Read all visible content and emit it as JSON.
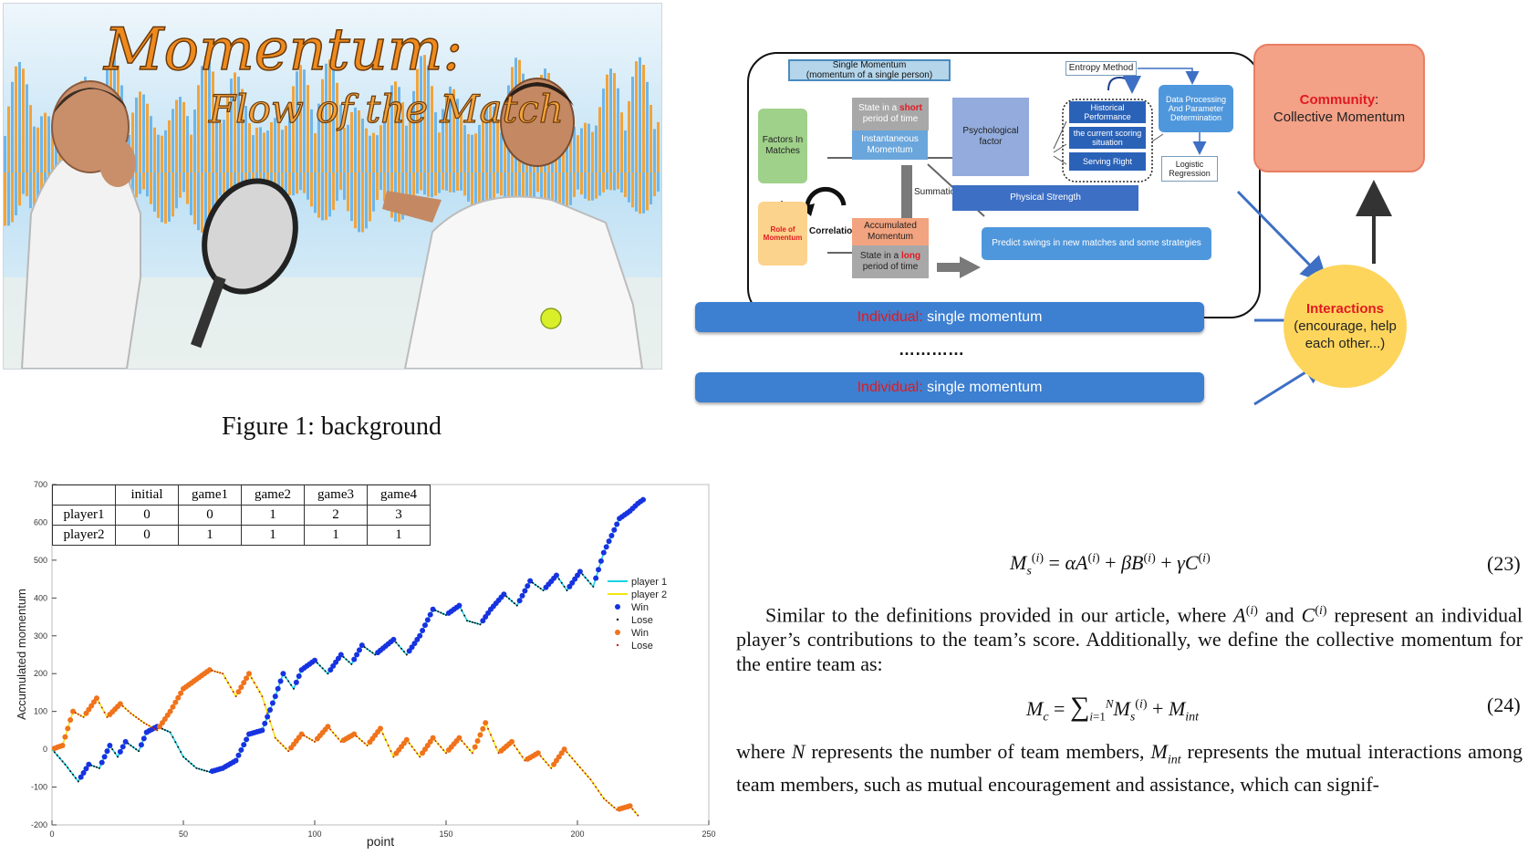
{
  "banner": {
    "title": "Momentum:",
    "subtitle": "Flow of the Match",
    "colors": {
      "blue": "#6fb6e8",
      "orange": "#f0a43c",
      "sky": "#cfe8f8"
    }
  },
  "figure1_caption": "Figure 1: background",
  "diagram": {
    "single_momentum_title": "Single Momentum",
    "single_momentum_sub": "(momentum of a single person)",
    "entropy_method": "Entropy Method",
    "factors_in_matches": "Factors In Matches",
    "state_short_pre": "State in a ",
    "state_short_word": "short",
    "state_short_post": " period of time",
    "instantaneous_momentum": "Instantaneous Momentum",
    "psychological_factor": "Psychological factor",
    "historical_performance": "Historical Performance",
    "current_scoring": "the current scoring situation",
    "serving_right": "Serving Right",
    "data_processing": "Data Processing And Parameter Determination",
    "logistic_regression": "Logistic Regression",
    "summation": "Summation",
    "correlation": "Correlation",
    "physical_strength": "Physical Strength",
    "role_of_momentum": "Role of Momentum",
    "accumulated_momentum": "Accumulated Momentum",
    "state_long_pre": "State in a ",
    "state_long_word": "long",
    "state_long_post": " period of time",
    "predict_swings": "Predict swings in new matches and some strategies",
    "community_label": "Community",
    "community_colon": ":",
    "community_text": "Collective Momentum",
    "interactions_label": "Interactions",
    "interactions_text": "(encourage, help each other...)",
    "individual_label": "Individual",
    "individual_colon": ":",
    "individual_text": " single momentum",
    "dots": "…………"
  },
  "equations": {
    "eq23_number": "(23)",
    "eq24_number": "(24)"
  },
  "paragraphs": {
    "p1": "Similar to the definitions provided in our article, where A(i) and C(i) represent an individual player’s contributions to the team’s score. Additionally, we define the collective momentum for the entire team as:",
    "p2": "where N represents the number of team members, Mint represents the mutual interactions among team members, such as mutual encouragement and assistance, which can signif-"
  },
  "score_table": {
    "headers": [
      "",
      "initial",
      "game1",
      "game2",
      "game3",
      "game4"
    ],
    "rows": [
      [
        "player1",
        "0",
        "0",
        "1",
        "2",
        "3"
      ],
      [
        "player2",
        "0",
        "1",
        "1",
        "1",
        "1"
      ]
    ]
  },
  "chart_data": {
    "type": "line",
    "xlabel": "point",
    "ylabel": "Accumulated momentum",
    "xlim": [
      0,
      250
    ],
    "ylim": [
      -200,
      700
    ],
    "xticks": [
      0,
      50,
      100,
      150,
      200,
      250
    ],
    "yticks": [
      -200,
      -100,
      0,
      100,
      200,
      300,
      400,
      500,
      600,
      700
    ],
    "legend": [
      "player 1",
      "player 2",
      "Win",
      "Lose",
      "Win",
      "Lose"
    ],
    "legend_position": "right",
    "series": [
      {
        "name": "player 1",
        "color": "#19d3e6",
        "win_color": "#1733e0",
        "anchors": [
          [
            0,
            0
          ],
          [
            5,
            -40
          ],
          [
            10,
            -85
          ],
          [
            14,
            -40
          ],
          [
            18,
            -50
          ],
          [
            22,
            10
          ],
          [
            25,
            -20
          ],
          [
            28,
            20
          ],
          [
            33,
            -5
          ],
          [
            36,
            45
          ],
          [
            40,
            60
          ],
          [
            45,
            45
          ],
          [
            50,
            -20
          ],
          [
            55,
            -50
          ],
          [
            60,
            -60
          ],
          [
            65,
            -50
          ],
          [
            70,
            -30
          ],
          [
            75,
            40
          ],
          [
            80,
            50
          ],
          [
            85,
            140
          ],
          [
            88,
            200
          ],
          [
            92,
            160
          ],
          [
            95,
            210
          ],
          [
            100,
            235
          ],
          [
            105,
            200
          ],
          [
            110,
            250
          ],
          [
            114,
            225
          ],
          [
            118,
            275
          ],
          [
            123,
            250
          ],
          [
            130,
            290
          ],
          [
            135,
            250
          ],
          [
            140,
            300
          ],
          [
            145,
            370
          ],
          [
            150,
            355
          ],
          [
            155,
            380
          ],
          [
            158,
            340
          ],
          [
            163,
            330
          ],
          [
            167,
            370
          ],
          [
            172,
            410
          ],
          [
            177,
            380
          ],
          [
            182,
            445
          ],
          [
            187,
            420
          ],
          [
            192,
            460
          ],
          [
            196,
            420
          ],
          [
            201,
            470
          ],
          [
            206,
            430
          ],
          [
            210,
            520
          ],
          [
            216,
            610
          ],
          [
            220,
            630
          ],
          [
            223,
            650
          ],
          [
            225,
            660
          ]
        ]
      },
      {
        "name": "player 2",
        "color": "#f2e60c",
        "win_color": "#f0731c",
        "anchors": [
          [
            0,
            0
          ],
          [
            4,
            10
          ],
          [
            8,
            100
          ],
          [
            12,
            85
          ],
          [
            17,
            135
          ],
          [
            21,
            85
          ],
          [
            26,
            120
          ],
          [
            30,
            95
          ],
          [
            35,
            70
          ],
          [
            40,
            50
          ],
          [
            45,
            100
          ],
          [
            50,
            160
          ],
          [
            55,
            185
          ],
          [
            60,
            210
          ],
          [
            65,
            200
          ],
          [
            70,
            140
          ],
          [
            75,
            200
          ],
          [
            80,
            140
          ],
          [
            85,
            30
          ],
          [
            90,
            -5
          ],
          [
            95,
            40
          ],
          [
            100,
            20
          ],
          [
            105,
            60
          ],
          [
            110,
            20
          ],
          [
            115,
            40
          ],
          [
            120,
            10
          ],
          [
            125,
            55
          ],
          [
            130,
            -20
          ],
          [
            135,
            25
          ],
          [
            140,
            -20
          ],
          [
            145,
            30
          ],
          [
            150,
            -10
          ],
          [
            155,
            30
          ],
          [
            160,
            -10
          ],
          [
            165,
            70
          ],
          [
            170,
            -10
          ],
          [
            175,
            20
          ],
          [
            180,
            -30
          ],
          [
            185,
            -10
          ],
          [
            190,
            -50
          ],
          [
            195,
            0
          ],
          [
            200,
            -40
          ],
          [
            205,
            -80
          ],
          [
            210,
            -130
          ],
          [
            215,
            -160
          ],
          [
            220,
            -150
          ],
          [
            223,
            -175
          ]
        ]
      }
    ]
  }
}
